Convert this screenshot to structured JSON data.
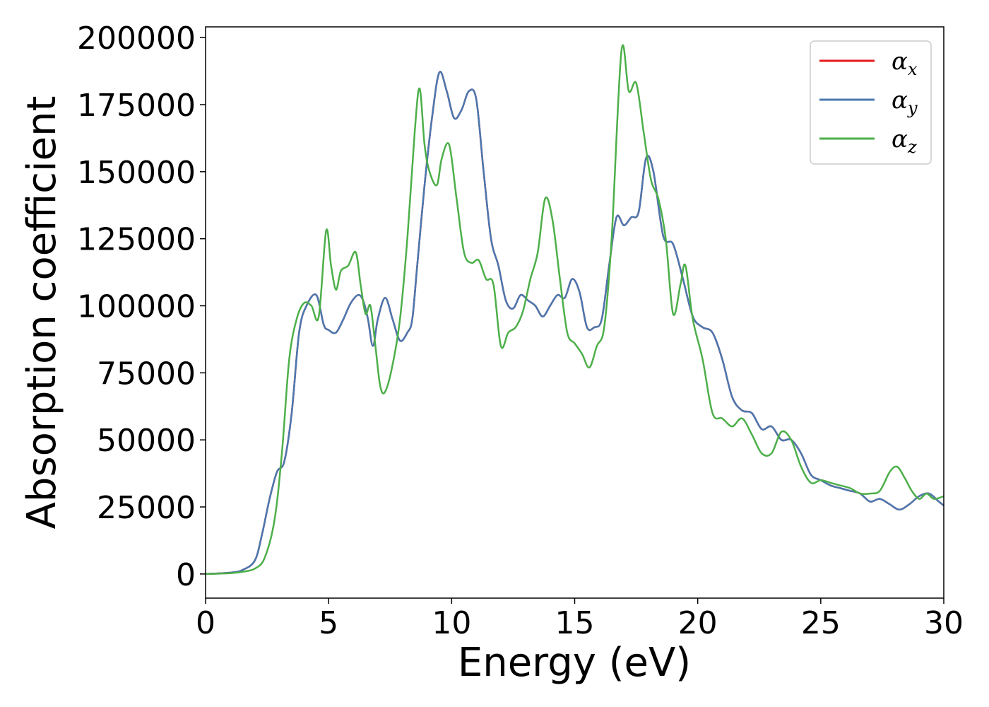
{
  "chart_data": {
    "type": "line",
    "title": "",
    "xlabel": "Energy (eV)",
    "ylabel": "Absorption coefficient",
    "xlim": [
      0,
      30
    ],
    "ylim": [
      -9000,
      204000
    ],
    "xticks": [
      0,
      5,
      10,
      15,
      20,
      25,
      30
    ],
    "yticks": [
      0,
      25000,
      50000,
      75000,
      100000,
      125000,
      150000,
      175000,
      200000
    ],
    "grid": false,
    "legend_position": "top-right",
    "series": [
      {
        "name": "α_x",
        "legend_main": "α",
        "legend_sub": "x",
        "color": "#e41a1c",
        "x": [
          0,
          1,
          1.5,
          2,
          2.3,
          2.6,
          2.9,
          3.2,
          3.5,
          3.8,
          4.1,
          4.5,
          4.8,
          5.0,
          5.3,
          5.6,
          5.9,
          6.2,
          6.4,
          6.6,
          6.8,
          7.0,
          7.3,
          7.6,
          7.9,
          8.2,
          8.4,
          8.6,
          8.9,
          9.2,
          9.5,
          9.8,
          10.1,
          10.4,
          10.7,
          11.0,
          11.3,
          11.6,
          11.9,
          12.2,
          12.5,
          12.8,
          13.1,
          13.4,
          13.7,
          14.0,
          14.3,
          14.6,
          14.9,
          15.2,
          15.5,
          15.8,
          16.1,
          16.4,
          16.7,
          17.0,
          17.3,
          17.6,
          17.9,
          18.2,
          18.6,
          19.0,
          19.4,
          19.8,
          20.2,
          20.6,
          21.0,
          21.4,
          21.8,
          22.2,
          22.6,
          23.0,
          23.4,
          23.8,
          24.2,
          24.6,
          25.0,
          25.4,
          25.8,
          26.2,
          26.6,
          27.0,
          27.4,
          27.8,
          28.2,
          28.6,
          29.0,
          29.4,
          29.8,
          30.0
        ],
        "y": [
          0,
          500,
          1500,
          5000,
          15000,
          28000,
          38000,
          42000,
          60000,
          90000,
          100000,
          104000,
          93000,
          91000,
          90000,
          95000,
          101000,
          104000,
          102000,
          95000,
          85000,
          95000,
          103000,
          95000,
          87000,
          90000,
          95000,
          115000,
          145000,
          170000,
          187000,
          180000,
          170000,
          173000,
          180000,
          177000,
          150000,
          125000,
          115000,
          102000,
          99000,
          104000,
          102000,
          100000,
          96000,
          100000,
          104000,
          103000,
          110000,
          105000,
          92000,
          92000,
          95000,
          115000,
          133000,
          130000,
          133000,
          135000,
          155000,
          150000,
          126000,
          123000,
          110000,
          96000,
          92000,
          90000,
          80000,
          66000,
          61000,
          60000,
          54000,
          55000,
          50000,
          50000,
          45000,
          37000,
          35000,
          33000,
          32000,
          31000,
          30000,
          27000,
          28000,
          26000,
          24000,
          26000,
          29000,
          30000,
          27000,
          25500
        ]
      },
      {
        "name": "α_y",
        "legend_main": "α",
        "legend_sub": "y",
        "color": "#4a78b0",
        "x": [
          0,
          1,
          1.5,
          2,
          2.3,
          2.6,
          2.9,
          3.2,
          3.5,
          3.8,
          4.1,
          4.5,
          4.8,
          5.0,
          5.3,
          5.6,
          5.9,
          6.2,
          6.4,
          6.6,
          6.8,
          7.0,
          7.3,
          7.6,
          7.9,
          8.2,
          8.4,
          8.6,
          8.9,
          9.2,
          9.5,
          9.8,
          10.1,
          10.4,
          10.7,
          11.0,
          11.3,
          11.6,
          11.9,
          12.2,
          12.5,
          12.8,
          13.1,
          13.4,
          13.7,
          14.0,
          14.3,
          14.6,
          14.9,
          15.2,
          15.5,
          15.8,
          16.1,
          16.4,
          16.7,
          17.0,
          17.3,
          17.6,
          17.9,
          18.2,
          18.6,
          19.0,
          19.4,
          19.8,
          20.2,
          20.6,
          21.0,
          21.4,
          21.8,
          22.2,
          22.6,
          23.0,
          23.4,
          23.8,
          24.2,
          24.6,
          25.0,
          25.4,
          25.8,
          26.2,
          26.6,
          27.0,
          27.4,
          27.8,
          28.2,
          28.6,
          29.0,
          29.4,
          29.8,
          30.0
        ],
        "y": [
          0,
          500,
          1500,
          5000,
          15000,
          28000,
          38000,
          42000,
          60000,
          90000,
          100000,
          104000,
          93000,
          91000,
          90000,
          95000,
          101000,
          104000,
          102000,
          95000,
          85000,
          95000,
          103000,
          95000,
          87000,
          90000,
          95000,
          115000,
          145000,
          170000,
          187000,
          180000,
          170000,
          173000,
          180000,
          177000,
          150000,
          125000,
          115000,
          102000,
          99000,
          104000,
          102000,
          100000,
          96000,
          100000,
          104000,
          103000,
          110000,
          105000,
          92000,
          92000,
          95000,
          115000,
          133000,
          130000,
          133000,
          135000,
          155000,
          150000,
          126000,
          123000,
          110000,
          96000,
          92000,
          90000,
          80000,
          66000,
          61000,
          60000,
          54000,
          55000,
          50000,
          50000,
          45000,
          37000,
          35000,
          33000,
          32000,
          31000,
          30000,
          27000,
          28000,
          26000,
          24000,
          26000,
          29000,
          30000,
          27000,
          25500
        ]
      },
      {
        "name": "α_z",
        "legend_main": "α",
        "legend_sub": "z",
        "color": "#4daf4a",
        "x": [
          0,
          1,
          1.5,
          2,
          2.4,
          2.8,
          3.1,
          3.4,
          3.7,
          4.0,
          4.3,
          4.6,
          4.9,
          5.1,
          5.3,
          5.5,
          5.8,
          6.1,
          6.3,
          6.5,
          6.7,
          6.9,
          7.1,
          7.3,
          7.6,
          7.9,
          8.2,
          8.5,
          8.7,
          8.9,
          9.1,
          9.4,
          9.6,
          9.9,
          10.2,
          10.5,
          10.8,
          11.1,
          11.4,
          11.7,
          12.0,
          12.3,
          12.6,
          12.9,
          13.2,
          13.5,
          13.8,
          14.1,
          14.4,
          14.7,
          15.0,
          15.3,
          15.6,
          15.9,
          16.2,
          16.5,
          16.9,
          17.2,
          17.5,
          17.8,
          18.1,
          18.4,
          18.7,
          19.0,
          19.3,
          19.5,
          19.8,
          20.2,
          20.6,
          21.0,
          21.4,
          21.8,
          22.2,
          22.6,
          23.0,
          23.4,
          23.8,
          24.2,
          24.6,
          25.0,
          25.4,
          25.8,
          26.2,
          26.6,
          27.0,
          27.4,
          27.8,
          28.1,
          28.4,
          28.7,
          29.0,
          29.3,
          29.6,
          30.0
        ],
        "y": [
          0,
          300,
          800,
          2000,
          6000,
          20000,
          45000,
          80000,
          95000,
          101000,
          100000,
          96000,
          128000,
          115000,
          106000,
          113000,
          115000,
          120000,
          108000,
          97000,
          100000,
          85000,
          70000,
          68000,
          78000,
          95000,
          125000,
          165000,
          181000,
          160000,
          150000,
          145000,
          155000,
          160000,
          140000,
          120000,
          116000,
          117000,
          110000,
          108000,
          85000,
          90000,
          92000,
          98000,
          110000,
          120000,
          140000,
          132000,
          110000,
          90000,
          86000,
          82000,
          77000,
          85000,
          92000,
          125000,
          195000,
          180000,
          183000,
          165000,
          147000,
          140000,
          125000,
          97000,
          108000,
          115000,
          95000,
          80000,
          60000,
          58000,
          55000,
          58000,
          52000,
          45000,
          45000,
          53000,
          50000,
          40000,
          34000,
          35000,
          34000,
          33000,
          32000,
          30000,
          30000,
          31000,
          38000,
          40000,
          36000,
          31000,
          28000,
          30000,
          28000,
          29000
        ]
      }
    ]
  }
}
